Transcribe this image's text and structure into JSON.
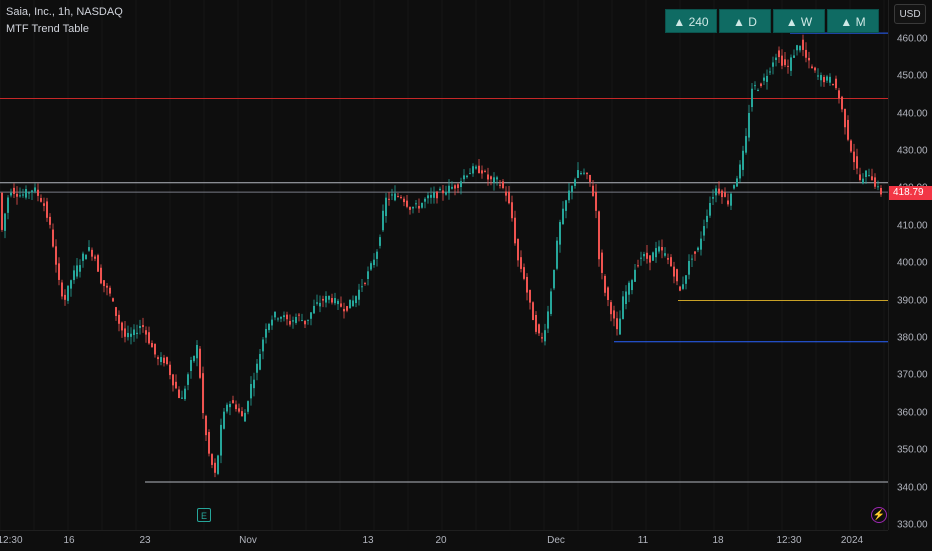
{
  "header": {
    "symbol": "Saia, Inc., 1h, NASDAQ",
    "indicator": "MTF Trend Table"
  },
  "trend_table": [
    {
      "label": "▲ 240",
      "direction": "up"
    },
    {
      "label": "▲ D",
      "direction": "up"
    },
    {
      "label": "▲ W",
      "direction": "up"
    },
    {
      "label": "▲ M",
      "direction": "up"
    }
  ],
  "currency": "USD",
  "last_price": "418.79",
  "colors": {
    "up": "#26a69a",
    "down": "#ef5350",
    "background": "#0e0e0e",
    "table_fill": "#0f6b63"
  },
  "icons": {
    "earnings": "E",
    "lightning": "⚡"
  },
  "chart_data": {
    "type": "candlestick",
    "ylim": [
      330,
      465
    ],
    "y_ticks": [
      "460.00",
      "450.00",
      "440.00",
      "430.00",
      "420.00",
      "410.00",
      "400.00",
      "390.00",
      "380.00",
      "370.00",
      "360.00",
      "350.00",
      "340.00",
      "330.00"
    ],
    "x_ticks": [
      "12:30",
      "16",
      "23",
      "Nov",
      "13",
      "20",
      "Dec",
      "11",
      "18",
      "12:30",
      "2024"
    ],
    "horizontal_levels": [
      {
        "price": 461.5,
        "color": "#2962ff",
        "from": "12:30 (Dec)"
      },
      {
        "price": 444.0,
        "color": "#c62828",
        "from": "start"
      },
      {
        "price": 421.5,
        "color": "#b2b5be",
        "from": "start"
      },
      {
        "price": 419.0,
        "color": "#787b86",
        "from": "start"
      },
      {
        "price": 390.0,
        "color": "#c9a227",
        "from": "Dec 14"
      },
      {
        "price": 379.0,
        "color": "#2962ff",
        "from": "Dec 8"
      },
      {
        "price": 341.5,
        "color": "#b2b5be",
        "from": "Oct 23"
      }
    ],
    "path": [
      [
        0,
        405
      ],
      [
        10,
        420
      ],
      [
        22,
        418
      ],
      [
        34,
        420
      ],
      [
        44,
        416
      ],
      [
        52,
        408
      ],
      [
        58,
        396
      ],
      [
        65,
        390
      ],
      [
        72,
        396
      ],
      [
        80,
        400
      ],
      [
        88,
        404
      ],
      [
        95,
        402
      ],
      [
        102,
        395
      ],
      [
        110,
        392
      ],
      [
        118,
        385
      ],
      [
        126,
        380
      ],
      [
        134,
        381
      ],
      [
        142,
        384
      ],
      [
        150,
        379
      ],
      [
        158,
        374
      ],
      [
        166,
        374
      ],
      [
        174,
        368
      ],
      [
        182,
        363
      ],
      [
        190,
        372
      ],
      [
        198,
        378
      ],
      [
        204,
        358
      ],
      [
        210,
        348
      ],
      [
        216,
        343
      ],
      [
        222,
        357
      ],
      [
        228,
        363
      ],
      [
        236,
        362
      ],
      [
        244,
        358
      ],
      [
        250,
        366
      ],
      [
        258,
        373
      ],
      [
        266,
        383
      ],
      [
        274,
        386
      ],
      [
        282,
        386
      ],
      [
        290,
        384
      ],
      [
        298,
        386
      ],
      [
        306,
        384
      ],
      [
        314,
        388
      ],
      [
        322,
        390
      ],
      [
        330,
        391
      ],
      [
        338,
        389
      ],
      [
        346,
        388
      ],
      [
        354,
        390
      ],
      [
        362,
        394
      ],
      [
        370,
        398
      ],
      [
        378,
        404
      ],
      [
        386,
        417
      ],
      [
        394,
        418
      ],
      [
        402,
        418
      ],
      [
        410,
        415
      ],
      [
        418,
        415
      ],
      [
        426,
        417
      ],
      [
        434,
        418
      ],
      [
        442,
        419
      ],
      [
        450,
        420
      ],
      [
        458,
        421
      ],
      [
        466,
        424
      ],
      [
        474,
        425
      ],
      [
        482,
        425
      ],
      [
        490,
        422
      ],
      [
        498,
        422
      ],
      [
        506,
        419
      ],
      [
        512,
        413
      ],
      [
        518,
        401
      ],
      [
        524,
        397
      ],
      [
        530,
        389
      ],
      [
        536,
        383
      ],
      [
        542,
        379
      ],
      [
        548,
        386
      ],
      [
        554,
        398
      ],
      [
        560,
        410
      ],
      [
        566,
        416
      ],
      [
        572,
        421
      ],
      [
        578,
        424
      ],
      [
        584,
        424
      ],
      [
        590,
        422
      ],
      [
        596,
        416
      ],
      [
        600,
        400
      ],
      [
        606,
        392
      ],
      [
        612,
        387
      ],
      [
        618,
        381
      ],
      [
        624,
        391
      ],
      [
        630,
        394
      ],
      [
        636,
        399
      ],
      [
        642,
        402
      ],
      [
        650,
        401
      ],
      [
        658,
        404
      ],
      [
        666,
        402
      ],
      [
        674,
        398
      ],
      [
        680,
        392
      ],
      [
        686,
        397
      ],
      [
        692,
        402
      ],
      [
        698,
        403
      ],
      [
        704,
        410
      ],
      [
        710,
        416
      ],
      [
        716,
        420
      ],
      [
        722,
        419
      ],
      [
        728,
        416
      ],
      [
        734,
        421
      ],
      [
        740,
        425
      ],
      [
        746,
        432
      ],
      [
        752,
        447
      ],
      [
        758,
        447
      ],
      [
        764,
        449
      ],
      [
        770,
        452
      ],
      [
        776,
        456
      ],
      [
        782,
        454
      ],
      [
        788,
        452
      ],
      [
        794,
        456
      ],
      [
        800,
        459
      ],
      [
        806,
        455
      ],
      [
        812,
        452
      ],
      [
        818,
        450
      ],
      [
        826,
        449
      ],
      [
        832,
        449
      ],
      [
        838,
        446
      ],
      [
        844,
        439
      ],
      [
        850,
        432
      ],
      [
        856,
        426
      ],
      [
        862,
        421
      ],
      [
        868,
        425
      ],
      [
        874,
        422
      ],
      [
        880,
        418.79
      ]
    ]
  }
}
